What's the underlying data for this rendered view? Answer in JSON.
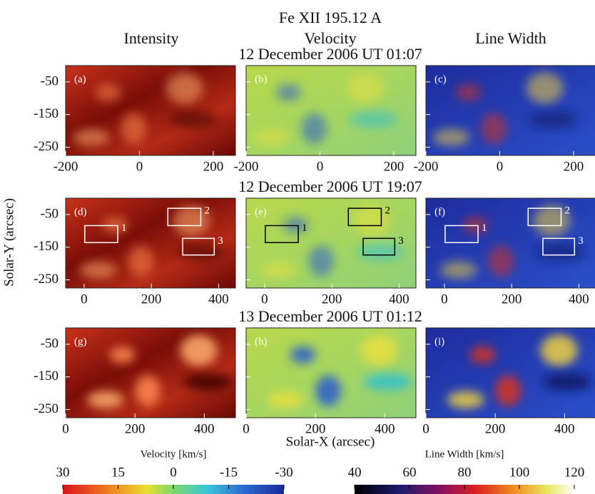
{
  "title": "Fe XII 195.12 A",
  "columns": [
    "Intensity",
    "Velocity",
    "Line Width"
  ],
  "rows": [
    {
      "date": "12 December 2006 UT 01:07",
      "panels": [
        "(a)",
        "(b)",
        "(c)"
      ],
      "xlim": [
        -200,
        260
      ],
      "xticks": [
        -200,
        0,
        200
      ]
    },
    {
      "date": "12 December 2006 UT 19:07",
      "panels": [
        "(d)",
        "(e)",
        "(f)"
      ],
      "xlim": [
        -55,
        450
      ],
      "xticks": [
        0,
        200,
        400
      ]
    },
    {
      "date": "13 December 2006 UT 01:12",
      "panels": [
        "(g)",
        "(h)",
        "(i)"
      ],
      "xlim": [
        0,
        490
      ],
      "xticks": [
        0,
        200,
        400
      ]
    }
  ],
  "ylim": [
    -275,
    0
  ],
  "yticks": [
    -50,
    -150,
    -250
  ],
  "xlabel": "Solar-X (arcsec)",
  "ylabel": "Solar-Y (arcsec)",
  "boxes": [
    {
      "label": "1",
      "x": [
        2,
        100
      ],
      "y": [
        -84,
        -136
      ]
    },
    {
      "label": "2",
      "x": [
        249,
        347
      ],
      "y": [
        -31,
        -84
      ]
    },
    {
      "label": "3",
      "x": [
        293,
        387
      ],
      "y": [
        -123,
        -174
      ]
    }
  ],
  "colorbars": [
    {
      "label": "Velocity [km/s]",
      "lim": [
        30,
        -30
      ],
      "ticks": [
        30,
        15,
        0,
        -15,
        -30
      ]
    },
    {
      "label": "Line Width [km/s]",
      "lim": [
        40,
        120
      ],
      "ticks": [
        40,
        60,
        80,
        100,
        120
      ]
    }
  ]
}
